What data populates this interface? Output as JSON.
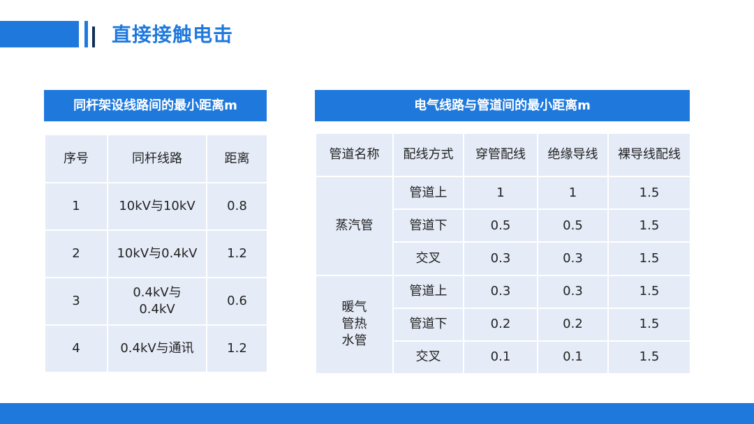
{
  "page": {
    "title": "直接接触电击"
  },
  "left_table": {
    "header": "同杆架设线路间的最小距离m",
    "columns": [
      "序号",
      "同杆线路",
      "距离"
    ],
    "rows": [
      {
        "no": "1",
        "line": "10kV与10kV",
        "dist": "0.8"
      },
      {
        "no": "2",
        "line": "10kV与0.4kV",
        "dist": "1.2"
      },
      {
        "no": "3",
        "line": "0.4kV与0.4kV",
        "dist": "0.6"
      },
      {
        "no": "4",
        "line": "0.4kV与通讯",
        "dist": "1.2"
      }
    ]
  },
  "right_table": {
    "header": "电气线路与管道间的最小距离m",
    "columns": [
      "管道名称",
      "配线方式",
      "穿管配线",
      "绝缘导线",
      "裸导线配线"
    ],
    "groups": [
      {
        "name": "蒸汽管",
        "rows": [
          {
            "method": "管道上",
            "conduit": "1",
            "insulated": "1",
            "bare": "1.5"
          },
          {
            "method": "管道下",
            "conduit": "0.5",
            "insulated": "0.5",
            "bare": "1.5"
          },
          {
            "method": "交叉",
            "conduit": "0.3",
            "insulated": "0.3",
            "bare": "1.5"
          }
        ]
      },
      {
        "name": "暖气管热水管",
        "rows": [
          {
            "method": "管道上",
            "conduit": "0.3",
            "insulated": "0.3",
            "bare": "1.5"
          },
          {
            "method": "管道下",
            "conduit": "0.2",
            "insulated": "0.2",
            "bare": "1.5"
          },
          {
            "method": "交叉",
            "conduit": "0.1",
            "insulated": "0.1",
            "bare": "1.5"
          }
        ]
      }
    ]
  },
  "colors": {
    "accent": "#1f79dd",
    "dark_accent": "#0f2f57",
    "cell_bg": "#e5ebf7"
  }
}
